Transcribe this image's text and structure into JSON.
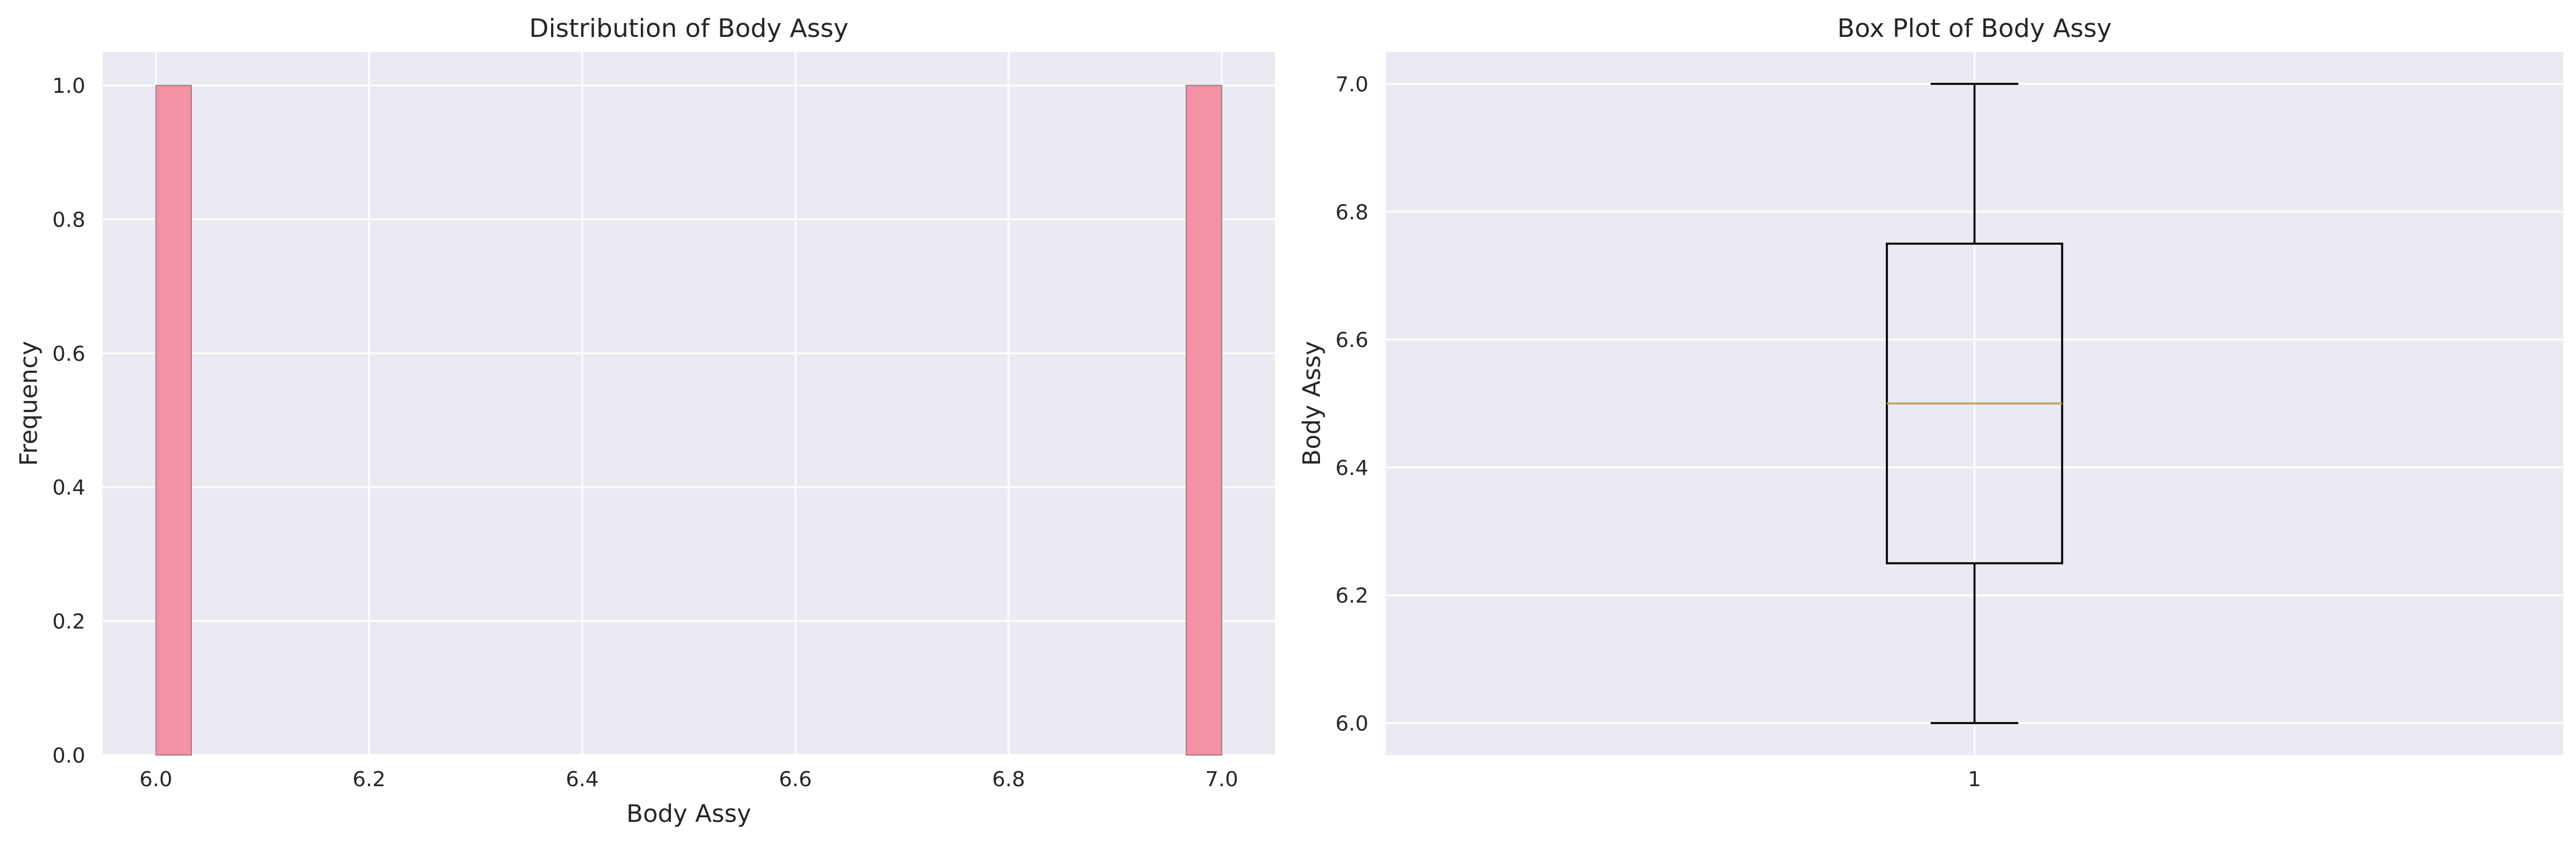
{
  "chart_data": [
    {
      "type": "histogram",
      "title": "Distribution of Body Assy",
      "xlabel": "Body Assy",
      "ylabel": "Frequency",
      "xlim": [
        5.95,
        7.05
      ],
      "ylim": [
        0,
        1.05
      ],
      "xticks": [
        "6.0",
        "6.2",
        "6.4",
        "6.6",
        "6.8",
        "7.0"
      ],
      "yticks": [
        "0.0",
        "0.2",
        "0.4",
        "0.6",
        "0.8",
        "1.0"
      ],
      "grid": true,
      "bars": [
        {
          "x0": 6.0,
          "x1": 6.0333,
          "value": 1
        },
        {
          "x0": 6.9667,
          "x1": 7.0,
          "value": 1
        }
      ],
      "bar_color": "#f391a6",
      "background": "#eaeaf2"
    },
    {
      "type": "box",
      "title": "Box Plot of Body Assy",
      "ylabel": "Body Assy",
      "xlabel": "",
      "ylim": [
        5.95,
        7.05
      ],
      "xticks": [
        "1"
      ],
      "yticks": [
        "6.0",
        "6.2",
        "6.4",
        "6.6",
        "6.8",
        "7.0"
      ],
      "grid": true,
      "box": {
        "whisker_low": 6.0,
        "q1": 6.25,
        "median": 6.5,
        "q3": 6.75,
        "whisker_high": 7.0
      },
      "median_color": "#c8a262",
      "background": "#eaeaf2"
    }
  ]
}
